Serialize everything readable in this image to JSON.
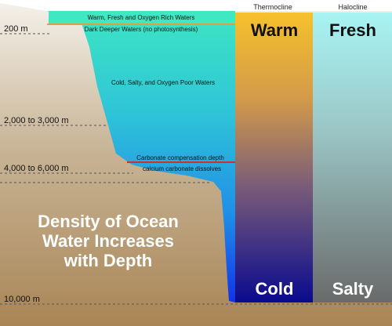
{
  "columns": {
    "thermocline": {
      "title": "Thermocline",
      "top_label": "Warm",
      "bottom_label": "Cold"
    },
    "halocline": {
      "title": "Halocline",
      "top_label": "Fresh",
      "bottom_label": "Salty"
    }
  },
  "depths": {
    "d200": "200 m",
    "d2000": "2,000 to 3,000 m",
    "d4000": "4,000 to 6,000 m",
    "d10000": "10,000 m"
  },
  "layers": {
    "surface": "Warm, Fresh and Oxygen Rich Waters",
    "deeper": "Dark Deeper Waters (no photosynthesis)",
    "cold": "Cold, Salty, and Oxygen Poor Waters",
    "ccd": "Carbonate compensation depth",
    "dissolves": "calcium carbonate dissolves"
  },
  "headline": {
    "line1": "Density of Ocean",
    "line2": "Water Increases",
    "line3": "with Depth"
  },
  "colors": {
    "water_top": "#3de0c0",
    "water_bottom": "#1020e0",
    "land_top": "#f5f2ec",
    "land_bottom": "#a88454",
    "warm": "#f5c02e",
    "cold": "#0c0c8c",
    "fresh": "#a6f2f2",
    "salty": "#6e6e6e",
    "ccd_line": "#d03030"
  }
}
